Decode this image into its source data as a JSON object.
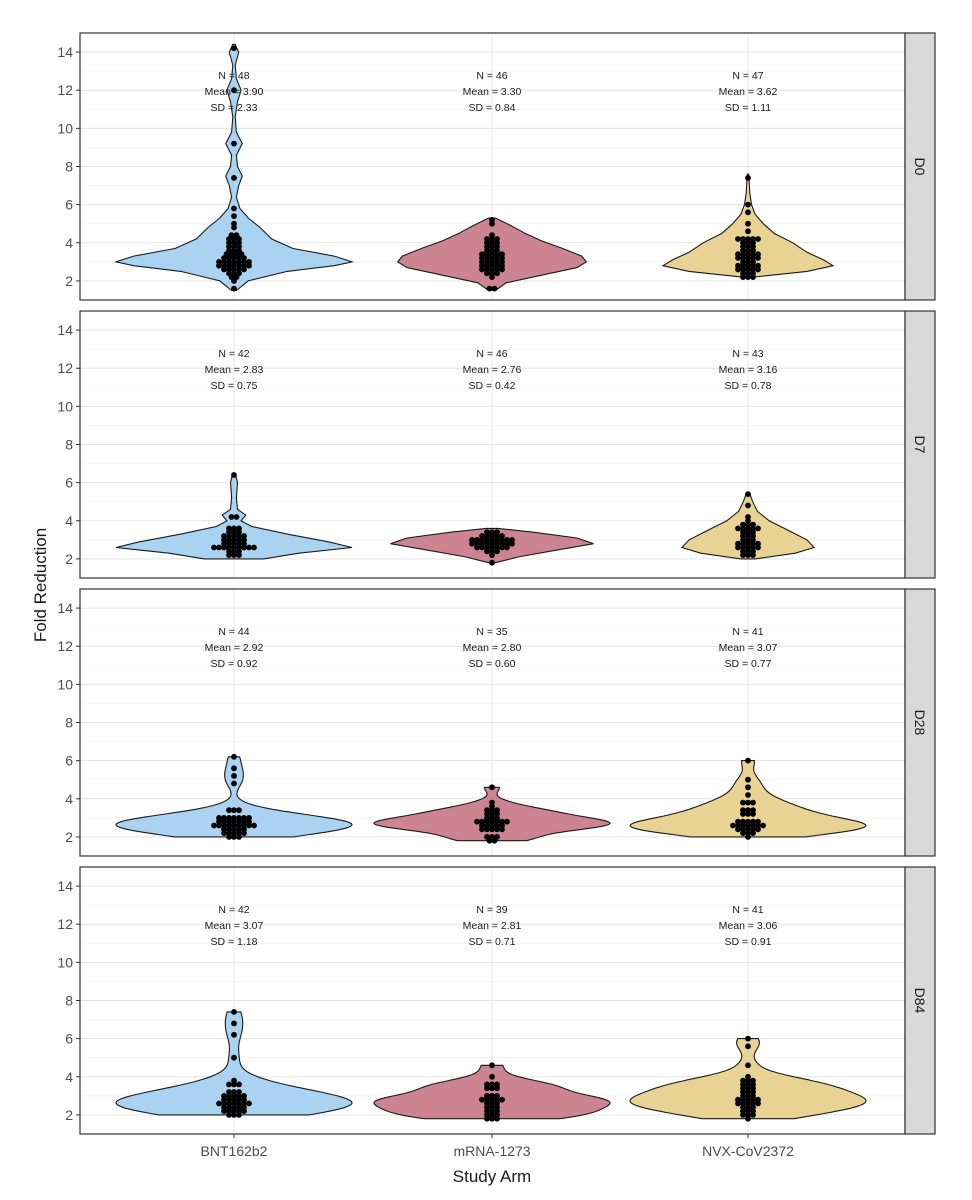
{
  "chart_data": {
    "type": "violin",
    "xlabel": "Study Arm",
    "ylabel": "Fold Reduction",
    "categories": [
      "BNT162b2",
      "mRNA-1273",
      "NVX-CoV2372"
    ],
    "colors": [
      "#a9d3f0",
      "#cc8590",
      "#e8d394"
    ],
    "y_ticks": [
      "2",
      "4",
      "6",
      "8",
      "10",
      "12",
      "14"
    ],
    "ylim": [
      1,
      15
    ],
    "grid": true,
    "facet_strips": [
      "D0",
      "D7",
      "D28",
      "D84"
    ],
    "panels": [
      {
        "strip": "D0",
        "stats": [
          {
            "n": "N = 48",
            "mean": "Mean = 3.90",
            "sd": "SD = 2.33"
          },
          {
            "n": "N = 46",
            "mean": "Mean = 3.30",
            "sd": "SD = 0.84"
          },
          {
            "n": "N = 47",
            "mean": "Mean = 3.62",
            "sd": "SD = 1.11"
          }
        ],
        "points": [
          [
            [
              1.6,
              1
            ],
            [
              2.0,
              1
            ],
            [
              2.2,
              2
            ],
            [
              2.4,
              3
            ],
            [
              2.6,
              5
            ],
            [
              2.8,
              7
            ],
            [
              3.0,
              7
            ],
            [
              3.2,
              5
            ],
            [
              3.4,
              4
            ],
            [
              3.6,
              3
            ],
            [
              3.8,
              3
            ],
            [
              4.0,
              3
            ],
            [
              4.2,
              3
            ],
            [
              4.4,
              2
            ],
            [
              4.8,
              1
            ],
            [
              5.0,
              1
            ],
            [
              5.4,
              1
            ],
            [
              5.8,
              1
            ],
            [
              7.4,
              1
            ],
            [
              9.2,
              1
            ],
            [
              12.0,
              1
            ],
            [
              14.2,
              1
            ]
          ],
          [
            [
              1.6,
              2
            ],
            [
              2.2,
              1
            ],
            [
              2.4,
              3
            ],
            [
              2.6,
              5
            ],
            [
              2.8,
              5
            ],
            [
              3.0,
              5
            ],
            [
              3.2,
              5
            ],
            [
              3.4,
              5
            ],
            [
              3.6,
              3
            ],
            [
              3.8,
              3
            ],
            [
              4.0,
              3
            ],
            [
              4.2,
              3
            ],
            [
              4.4,
              1
            ],
            [
              5.0,
              1
            ],
            [
              5.2,
              1
            ]
          ],
          [
            [
              2.2,
              3
            ],
            [
              2.4,
              3
            ],
            [
              2.6,
              5
            ],
            [
              2.8,
              5
            ],
            [
              3.0,
              3
            ],
            [
              3.2,
              5
            ],
            [
              3.4,
              5
            ],
            [
              3.6,
              3
            ],
            [
              3.8,
              3
            ],
            [
              4.0,
              3
            ],
            [
              4.2,
              5
            ],
            [
              4.6,
              1
            ],
            [
              5.0,
              1
            ],
            [
              5.6,
              1
            ],
            [
              6.0,
              1
            ],
            [
              7.4,
              1
            ]
          ]
        ],
        "violins": [
          [
            [
              1.5,
              0.02
            ],
            [
              2.0,
              0.12
            ],
            [
              2.5,
              0.45
            ],
            [
              2.8,
              0.85
            ],
            [
              3.0,
              1.0
            ],
            [
              3.3,
              0.85
            ],
            [
              3.7,
              0.5
            ],
            [
              4.2,
              0.32
            ],
            [
              4.8,
              0.22
            ],
            [
              5.3,
              0.12
            ],
            [
              5.8,
              0.05
            ],
            [
              6.4,
              0.02
            ],
            [
              7.0,
              0.04
            ],
            [
              7.5,
              0.07
            ],
            [
              8.0,
              0.03
            ],
            [
              8.6,
              0.02
            ],
            [
              9.2,
              0.07
            ],
            [
              9.8,
              0.02
            ],
            [
              10.6,
              0.01
            ],
            [
              11.4,
              0.03
            ],
            [
              12.0,
              0.06
            ],
            [
              12.6,
              0.02
            ],
            [
              13.3,
              0.01
            ],
            [
              14.0,
              0.04
            ],
            [
              14.4,
              0.01
            ]
          ],
          [
            [
              1.5,
              0.03
            ],
            [
              1.9,
              0.12
            ],
            [
              2.3,
              0.42
            ],
            [
              2.7,
              0.72
            ],
            [
              3.0,
              0.8
            ],
            [
              3.3,
              0.76
            ],
            [
              3.7,
              0.6
            ],
            [
              4.1,
              0.42
            ],
            [
              4.5,
              0.28
            ],
            [
              4.9,
              0.16
            ],
            [
              5.3,
              0.03
            ]
          ],
          [
            [
              2.2,
              0.05
            ],
            [
              2.5,
              0.5
            ],
            [
              2.8,
              0.72
            ],
            [
              3.1,
              0.64
            ],
            [
              3.5,
              0.5
            ],
            [
              4.0,
              0.38
            ],
            [
              4.5,
              0.22
            ],
            [
              5.0,
              0.13
            ],
            [
              5.5,
              0.06
            ],
            [
              6.0,
              0.03
            ],
            [
              6.6,
              0.015
            ],
            [
              7.2,
              0.01
            ],
            [
              7.6,
              0.005
            ]
          ]
        ]
      },
      {
        "strip": "D7",
        "stats": [
          {
            "n": "N = 42",
            "mean": "Mean = 2.83",
            "sd": "SD = 0.75"
          },
          {
            "n": "N = 46",
            "mean": "Mean = 2.76",
            "sd": "SD = 0.42"
          },
          {
            "n": "N = 43",
            "mean": "Mean = 3.16",
            "sd": "SD = 0.78"
          }
        ],
        "points": [
          [
            [
              2.2,
              3
            ],
            [
              2.4,
              3
            ],
            [
              2.6,
              9
            ],
            [
              2.8,
              5
            ],
            [
              3.0,
              5
            ],
            [
              3.2,
              5
            ],
            [
              3.4,
              3
            ],
            [
              3.6,
              3
            ],
            [
              4.2,
              2
            ],
            [
              6.4,
              1
            ]
          ],
          [
            [
              1.8,
              1
            ],
            [
              2.2,
              1
            ],
            [
              2.4,
              3
            ],
            [
              2.6,
              7
            ],
            [
              2.8,
              9
            ],
            [
              3.0,
              9
            ],
            [
              3.2,
              5
            ],
            [
              3.4,
              3
            ]
          ],
          [
            [
              2.2,
              3
            ],
            [
              2.4,
              3
            ],
            [
              2.6,
              5
            ],
            [
              2.8,
              5
            ],
            [
              3.0,
              3
            ],
            [
              3.2,
              3
            ],
            [
              3.4,
              3
            ],
            [
              3.6,
              5
            ],
            [
              3.8,
              3
            ],
            [
              4.0,
              1
            ],
            [
              4.2,
              1
            ],
            [
              4.8,
              1
            ],
            [
              5.4,
              1
            ]
          ]
        ],
        "violins": [
          [
            [
              2.0,
              0.25
            ],
            [
              2.3,
              0.55
            ],
            [
              2.6,
              1.0
            ],
            [
              2.9,
              0.8
            ],
            [
              3.3,
              0.45
            ],
            [
              3.7,
              0.15
            ],
            [
              4.0,
              0.06
            ],
            [
              4.3,
              0.1
            ],
            [
              4.6,
              0.03
            ],
            [
              5.2,
              0.02
            ],
            [
              6.0,
              0.03
            ],
            [
              6.5,
              0.01
            ]
          ],
          [
            [
              1.8,
              0.03
            ],
            [
              2.1,
              0.22
            ],
            [
              2.5,
              0.58
            ],
            [
              2.8,
              0.86
            ],
            [
              3.1,
              0.72
            ],
            [
              3.4,
              0.35
            ],
            [
              3.6,
              0.05
            ]
          ],
          [
            [
              2.0,
              0.06
            ],
            [
              2.3,
              0.4
            ],
            [
              2.6,
              0.56
            ],
            [
              3.0,
              0.5
            ],
            [
              3.5,
              0.34
            ],
            [
              4.0,
              0.18
            ],
            [
              4.5,
              0.08
            ],
            [
              5.0,
              0.04
            ],
            [
              5.5,
              0.01
            ]
          ]
        ]
      },
      {
        "strip": "D28",
        "stats": [
          {
            "n": "N = 44",
            "mean": "Mean = 2.92",
            "sd": "SD = 0.92"
          },
          {
            "n": "N = 35",
            "mean": "Mean = 2.80",
            "sd": "SD = 0.60"
          },
          {
            "n": "N = 41",
            "mean": "Mean = 3.07",
            "sd": "SD = 0.77"
          }
        ],
        "points": [
          [
            [
              2.0,
              3
            ],
            [
              2.2,
              5
            ],
            [
              2.4,
              5
            ],
            [
              2.6,
              9
            ],
            [
              2.8,
              7
            ],
            [
              3.0,
              7
            ],
            [
              3.4,
              3
            ],
            [
              4.8,
              1
            ],
            [
              5.2,
              1
            ],
            [
              5.6,
              1
            ],
            [
              6.2,
              1
            ]
          ],
          [
            [
              1.8,
              2
            ],
            [
              2.0,
              3
            ],
            [
              2.4,
              5
            ],
            [
              2.6,
              5
            ],
            [
              2.8,
              7
            ],
            [
              3.0,
              3
            ],
            [
              3.2,
              3
            ],
            [
              3.4,
              3
            ],
            [
              3.6,
              1
            ],
            [
              3.8,
              1
            ],
            [
              4.6,
              1
            ]
          ],
          [
            [
              2.0,
              1
            ],
            [
              2.2,
              3
            ],
            [
              2.4,
              5
            ],
            [
              2.6,
              7
            ],
            [
              2.8,
              5
            ],
            [
              3.2,
              3
            ],
            [
              3.4,
              3
            ],
            [
              3.8,
              3
            ],
            [
              4.2,
              1
            ],
            [
              4.6,
              1
            ],
            [
              5.0,
              1
            ],
            [
              6.0,
              1
            ]
          ]
        ]
      },
      {
        "strip": "D84",
        "stats": [
          {
            "n": "N = 42",
            "mean": "Mean = 3.07",
            "sd": "SD = 1.18"
          },
          {
            "n": "N = 39",
            "mean": "Mean = 2.81",
            "sd": "SD = 0.71"
          },
          {
            "n": "N = 41",
            "mean": "Mean = 3.06",
            "sd": "SD = 0.91"
          }
        ],
        "points": [
          [
            [
              2.0,
              3
            ],
            [
              2.2,
              5
            ],
            [
              2.4,
              5
            ],
            [
              2.6,
              7
            ],
            [
              2.8,
              5
            ],
            [
              3.0,
              5
            ],
            [
              3.2,
              3
            ],
            [
              3.6,
              3
            ],
            [
              3.8,
              1
            ],
            [
              5.0,
              1
            ],
            [
              6.2,
              1
            ],
            [
              6.8,
              1
            ],
            [
              7.4,
              1
            ]
          ],
          [
            [
              1.8,
              3
            ],
            [
              2.0,
              3
            ],
            [
              2.2,
              3
            ],
            [
              2.4,
              3
            ],
            [
              2.6,
              3
            ],
            [
              2.8,
              5
            ],
            [
              3.0,
              3
            ],
            [
              3.4,
              3
            ],
            [
              3.6,
              3
            ],
            [
              4.0,
              1
            ],
            [
              4.6,
              1
            ]
          ],
          [
            [
              1.8,
              1
            ],
            [
              2.0,
              3
            ],
            [
              2.2,
              3
            ],
            [
              2.4,
              3
            ],
            [
              2.6,
              5
            ],
            [
              2.8,
              5
            ],
            [
              3.0,
              3
            ],
            [
              3.2,
              3
            ],
            [
              3.4,
              3
            ],
            [
              3.6,
              3
            ],
            [
              3.8,
              3
            ],
            [
              4.0,
              1
            ],
            [
              4.6,
              1
            ],
            [
              5.6,
              1
            ],
            [
              6.0,
              1
            ]
          ]
        ]
      }
    ]
  }
}
